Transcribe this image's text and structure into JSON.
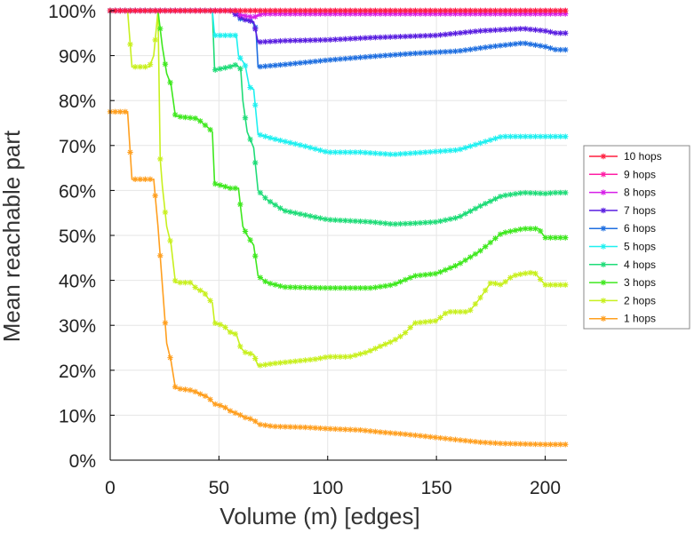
{
  "chart_data": {
    "type": "line",
    "title": "",
    "xlabel": "Volume (m) [edges]",
    "ylabel": "Mean reachable part",
    "xlim": [
      0,
      210
    ],
    "ylim": [
      0,
      100
    ],
    "x_ticks": [
      0,
      50,
      100,
      150,
      200
    ],
    "y_ticks": [
      0,
      10,
      20,
      30,
      40,
      50,
      60,
      70,
      80,
      90,
      100
    ],
    "x_tick_labels": [
      "0",
      "50",
      "100",
      "150",
      "200"
    ],
    "y_tick_labels": [
      "0%",
      "10%",
      "20%",
      "30%",
      "40%",
      "50%",
      "60%",
      "70%",
      "80%",
      "90%",
      "100%"
    ],
    "grid": true,
    "legend_position": "right",
    "series": [
      {
        "name": "10 hops",
        "color": "#ff1f3f",
        "points": [
          [
            0,
            100
          ],
          [
            210,
            100
          ]
        ]
      },
      {
        "name": "9 hops",
        "color": "#ff1fa5",
        "points": [
          [
            0,
            100
          ],
          [
            210,
            100
          ]
        ]
      },
      {
        "name": "8 hops",
        "color": "#d61fe8",
        "points": [
          [
            0,
            100
          ],
          [
            58,
            100
          ],
          [
            60,
            99
          ],
          [
            66,
            98.5
          ],
          [
            68,
            99
          ],
          [
            70,
            99.3
          ],
          [
            210,
            99.3
          ]
        ]
      },
      {
        "name": "7 hops",
        "color": "#5a1fe0",
        "points": [
          [
            0,
            100
          ],
          [
            55,
            100
          ],
          [
            58,
            99
          ],
          [
            62,
            98
          ],
          [
            66,
            97.5
          ],
          [
            68,
            93
          ],
          [
            80,
            93.3
          ],
          [
            100,
            93.5
          ],
          [
            120,
            94
          ],
          [
            150,
            94.5
          ],
          [
            170,
            95.5
          ],
          [
            190,
            96
          ],
          [
            200,
            95.5
          ],
          [
            205,
            95
          ],
          [
            210,
            95
          ]
        ]
      },
      {
        "name": "6 hops",
        "color": "#1f6fe0",
        "points": [
          [
            0,
            100
          ],
          [
            58,
            100
          ],
          [
            60,
            98
          ],
          [
            64,
            98
          ],
          [
            66,
            97
          ],
          [
            67,
            96
          ],
          [
            68,
            87.5
          ],
          [
            80,
            88
          ],
          [
            100,
            89
          ],
          [
            120,
            89.8
          ],
          [
            140,
            90.5
          ],
          [
            160,
            91
          ],
          [
            175,
            92
          ],
          [
            190,
            92.8
          ],
          [
            200,
            92
          ],
          [
            205,
            91.3
          ],
          [
            210,
            91.3
          ]
        ]
      },
      {
        "name": "5 hops",
        "color": "#1ff0f0",
        "points": [
          [
            0,
            100
          ],
          [
            47,
            100
          ],
          [
            48,
            94.5
          ],
          [
            58,
            94.5
          ],
          [
            59,
            90
          ],
          [
            62,
            88
          ],
          [
            64,
            83
          ],
          [
            66,
            82.5
          ],
          [
            68,
            72.5
          ],
          [
            75,
            71.5
          ],
          [
            90,
            69.8
          ],
          [
            100,
            68.5
          ],
          [
            115,
            68.5
          ],
          [
            130,
            68
          ],
          [
            145,
            68.5
          ],
          [
            160,
            69
          ],
          [
            170,
            70.5
          ],
          [
            180,
            72
          ],
          [
            190,
            72
          ],
          [
            200,
            72
          ],
          [
            210,
            72
          ]
        ]
      },
      {
        "name": "4 hops",
        "color": "#1fdc78",
        "points": [
          [
            0,
            100
          ],
          [
            47,
            100
          ],
          [
            48,
            86.8
          ],
          [
            55,
            87.5
          ],
          [
            58,
            88
          ],
          [
            60,
            87
          ],
          [
            61,
            80
          ],
          [
            63,
            73
          ],
          [
            66,
            69.5
          ],
          [
            68,
            60
          ],
          [
            72,
            58
          ],
          [
            80,
            55.5
          ],
          [
            90,
            54.5
          ],
          [
            100,
            53.5
          ],
          [
            120,
            53
          ],
          [
            130,
            52.5
          ],
          [
            140,
            52.7
          ],
          [
            150,
            53
          ],
          [
            160,
            54
          ],
          [
            170,
            56.5
          ],
          [
            180,
            58.8
          ],
          [
            190,
            59.5
          ],
          [
            200,
            59.3
          ],
          [
            205,
            59.5
          ],
          [
            210,
            59.5
          ]
        ]
      },
      {
        "name": "3 hops",
        "color": "#3fe81f",
        "points": [
          [
            0,
            100
          ],
          [
            22,
            100
          ],
          [
            24,
            92
          ],
          [
            26,
            86
          ],
          [
            28,
            83.5
          ],
          [
            30,
            76.5
          ],
          [
            40,
            76
          ],
          [
            45,
            74
          ],
          [
            47,
            73
          ],
          [
            48,
            61.5
          ],
          [
            52,
            61
          ],
          [
            55,
            60.5
          ],
          [
            59,
            60.5
          ],
          [
            60,
            56
          ],
          [
            61,
            52
          ],
          [
            63,
            50
          ],
          [
            66,
            47.8
          ],
          [
            68,
            41
          ],
          [
            72,
            39.5
          ],
          [
            80,
            38.5
          ],
          [
            100,
            38.3
          ],
          [
            120,
            38.3
          ],
          [
            130,
            39
          ],
          [
            140,
            41
          ],
          [
            150,
            41.5
          ],
          [
            160,
            43.5
          ],
          [
            170,
            46.5
          ],
          [
            180,
            50.5
          ],
          [
            190,
            51.5
          ],
          [
            197,
            51.5
          ],
          [
            200,
            49.5
          ],
          [
            210,
            49.5
          ]
        ]
      },
      {
        "name": "2 hops",
        "color": "#c8f01f",
        "points": [
          [
            0,
            100
          ],
          [
            8,
            100
          ],
          [
            10,
            87.5
          ],
          [
            18,
            87.5
          ],
          [
            20,
            90
          ],
          [
            22,
            100
          ],
          [
            23,
            67
          ],
          [
            24,
            61
          ],
          [
            26,
            52
          ],
          [
            28,
            48
          ],
          [
            30,
            39.5
          ],
          [
            37,
            39.5
          ],
          [
            40,
            38
          ],
          [
            43,
            37.5
          ],
          [
            45,
            36
          ],
          [
            47,
            35
          ],
          [
            48,
            30.5
          ],
          [
            52,
            30
          ],
          [
            55,
            28.5
          ],
          [
            58,
            28
          ],
          [
            60,
            25
          ],
          [
            62,
            24
          ],
          [
            66,
            23.5
          ],
          [
            68,
            21
          ],
          [
            75,
            21.5
          ],
          [
            85,
            22
          ],
          [
            95,
            22.5
          ],
          [
            100,
            23
          ],
          [
            110,
            23
          ],
          [
            118,
            24
          ],
          [
            125,
            25.5
          ],
          [
            130,
            26.5
          ],
          [
            135,
            28
          ],
          [
            140,
            30.5
          ],
          [
            150,
            31
          ],
          [
            155,
            33
          ],
          [
            165,
            33
          ],
          [
            170,
            36
          ],
          [
            175,
            39.5
          ],
          [
            180,
            39
          ],
          [
            185,
            41
          ],
          [
            190,
            41.5
          ],
          [
            195,
            41.8
          ],
          [
            200,
            39
          ],
          [
            205,
            39
          ],
          [
            210,
            39
          ]
        ]
      },
      {
        "name": "1 hops",
        "color": "#ff9f1f",
        "points": [
          [
            0,
            77.5
          ],
          [
            8,
            77.5
          ],
          [
            10,
            62.5
          ],
          [
            20,
            62.5
          ],
          [
            22,
            52
          ],
          [
            24,
            39
          ],
          [
            26,
            26
          ],
          [
            28,
            22
          ],
          [
            30,
            16
          ],
          [
            38,
            15.5
          ],
          [
            40,
            15
          ],
          [
            45,
            14
          ],
          [
            48,
            12.5
          ],
          [
            52,
            12
          ],
          [
            55,
            11
          ],
          [
            60,
            10
          ],
          [
            62,
            9.5
          ],
          [
            66,
            9
          ],
          [
            68,
            8
          ],
          [
            75,
            7.5
          ],
          [
            90,
            7.3
          ],
          [
            100,
            7
          ],
          [
            115,
            6.7
          ],
          [
            125,
            6.2
          ],
          [
            135,
            5.8
          ],
          [
            145,
            5.3
          ],
          [
            160,
            4.5
          ],
          [
            170,
            4
          ],
          [
            180,
            3.7
          ],
          [
            190,
            3.6
          ],
          [
            200,
            3.5
          ],
          [
            210,
            3.5
          ]
        ]
      }
    ]
  }
}
